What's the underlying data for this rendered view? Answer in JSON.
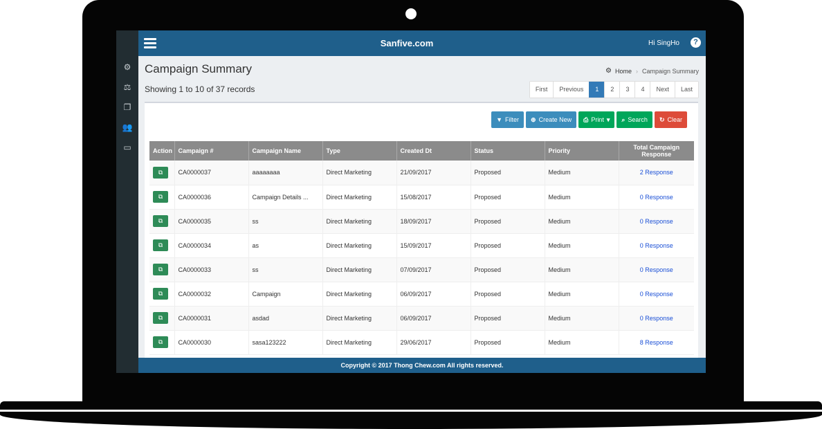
{
  "app": {
    "brand": "Sanfive.com",
    "greeting": "Hi SingHo",
    "help_glyph": "?"
  },
  "sidebar": {
    "items": [
      {
        "icon": "cubes-icon",
        "glyph": "⚙"
      },
      {
        "icon": "balance-scale-icon",
        "glyph": "⚖"
      },
      {
        "icon": "copy-icon",
        "glyph": "❐"
      },
      {
        "icon": "users-icon",
        "glyph": "👥"
      },
      {
        "icon": "desktop-icon",
        "glyph": "▭"
      }
    ]
  },
  "page": {
    "title": "Campaign Summary",
    "record_count": "Showing 1 to 10 of 37 records"
  },
  "breadcrumb": {
    "home": "Home",
    "current": "Campaign Summary"
  },
  "pagination": {
    "first": "First",
    "previous": "Previous",
    "pages": [
      "1",
      "2",
      "3",
      "4"
    ],
    "active_page": "1",
    "next": "Next",
    "last": "Last"
  },
  "toolbar": {
    "filter": "Filter",
    "create_new": "Create New",
    "print": "Print",
    "search": "Search",
    "clear": "Clear"
  },
  "table": {
    "headers": [
      "Action",
      "Campaign #",
      "Campaign Name",
      "Type",
      "Created Dt",
      "Status",
      "Priority",
      "Total Campaign Response"
    ],
    "rows": [
      [
        "CA0000037",
        "aaaaaaaa",
        "Direct Marketing",
        "21/09/2017",
        "Proposed",
        "Medium",
        "2 Response"
      ],
      [
        "CA0000036",
        "Campaign Details ...",
        "Direct Marketing",
        "15/08/2017",
        "Proposed",
        "Medium",
        "0 Response"
      ],
      [
        "CA0000035",
        "ss",
        "Direct Marketing",
        "18/09/2017",
        "Proposed",
        "Medium",
        "0 Response"
      ],
      [
        "CA0000034",
        "as",
        "Direct Marketing",
        "15/09/2017",
        "Proposed",
        "Medium",
        "0 Response"
      ],
      [
        "CA0000033",
        "ss",
        "Direct Marketing",
        "07/09/2017",
        "Proposed",
        "Medium",
        "0 Response"
      ],
      [
        "CA0000032",
        "Campaign",
        "Direct Marketing",
        "06/09/2017",
        "Proposed",
        "Medium",
        "0 Response"
      ],
      [
        "CA0000031",
        "asdad",
        "Direct Marketing",
        "06/09/2017",
        "Proposed",
        "Medium",
        "0 Response"
      ],
      [
        "CA0000030",
        "sasa123222",
        "Direct Marketing",
        "29/06/2017",
        "Proposed",
        "Medium",
        "8 Response"
      ]
    ]
  },
  "footer": {
    "text": "Copyright © 2017 Thong Chew.com All rights reserved."
  },
  "colors": {
    "header_bar": "#1f5f8b",
    "sidebar": "#222d32",
    "primary": "#3c8dbc",
    "success": "#00a65a",
    "danger": "#dd4b39",
    "action": "#2e8b57",
    "link": "#1a4fd6"
  }
}
